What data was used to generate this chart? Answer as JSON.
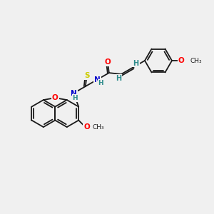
{
  "bg_color": "#f0f0f0",
  "bond_color": "#1a1a1a",
  "atom_colors": {
    "O": "#ff0000",
    "N": "#0000cc",
    "S": "#cccc00",
    "H": "#2d8b8b"
  },
  "font_size": 7.5,
  "bond_lw": 1.3
}
